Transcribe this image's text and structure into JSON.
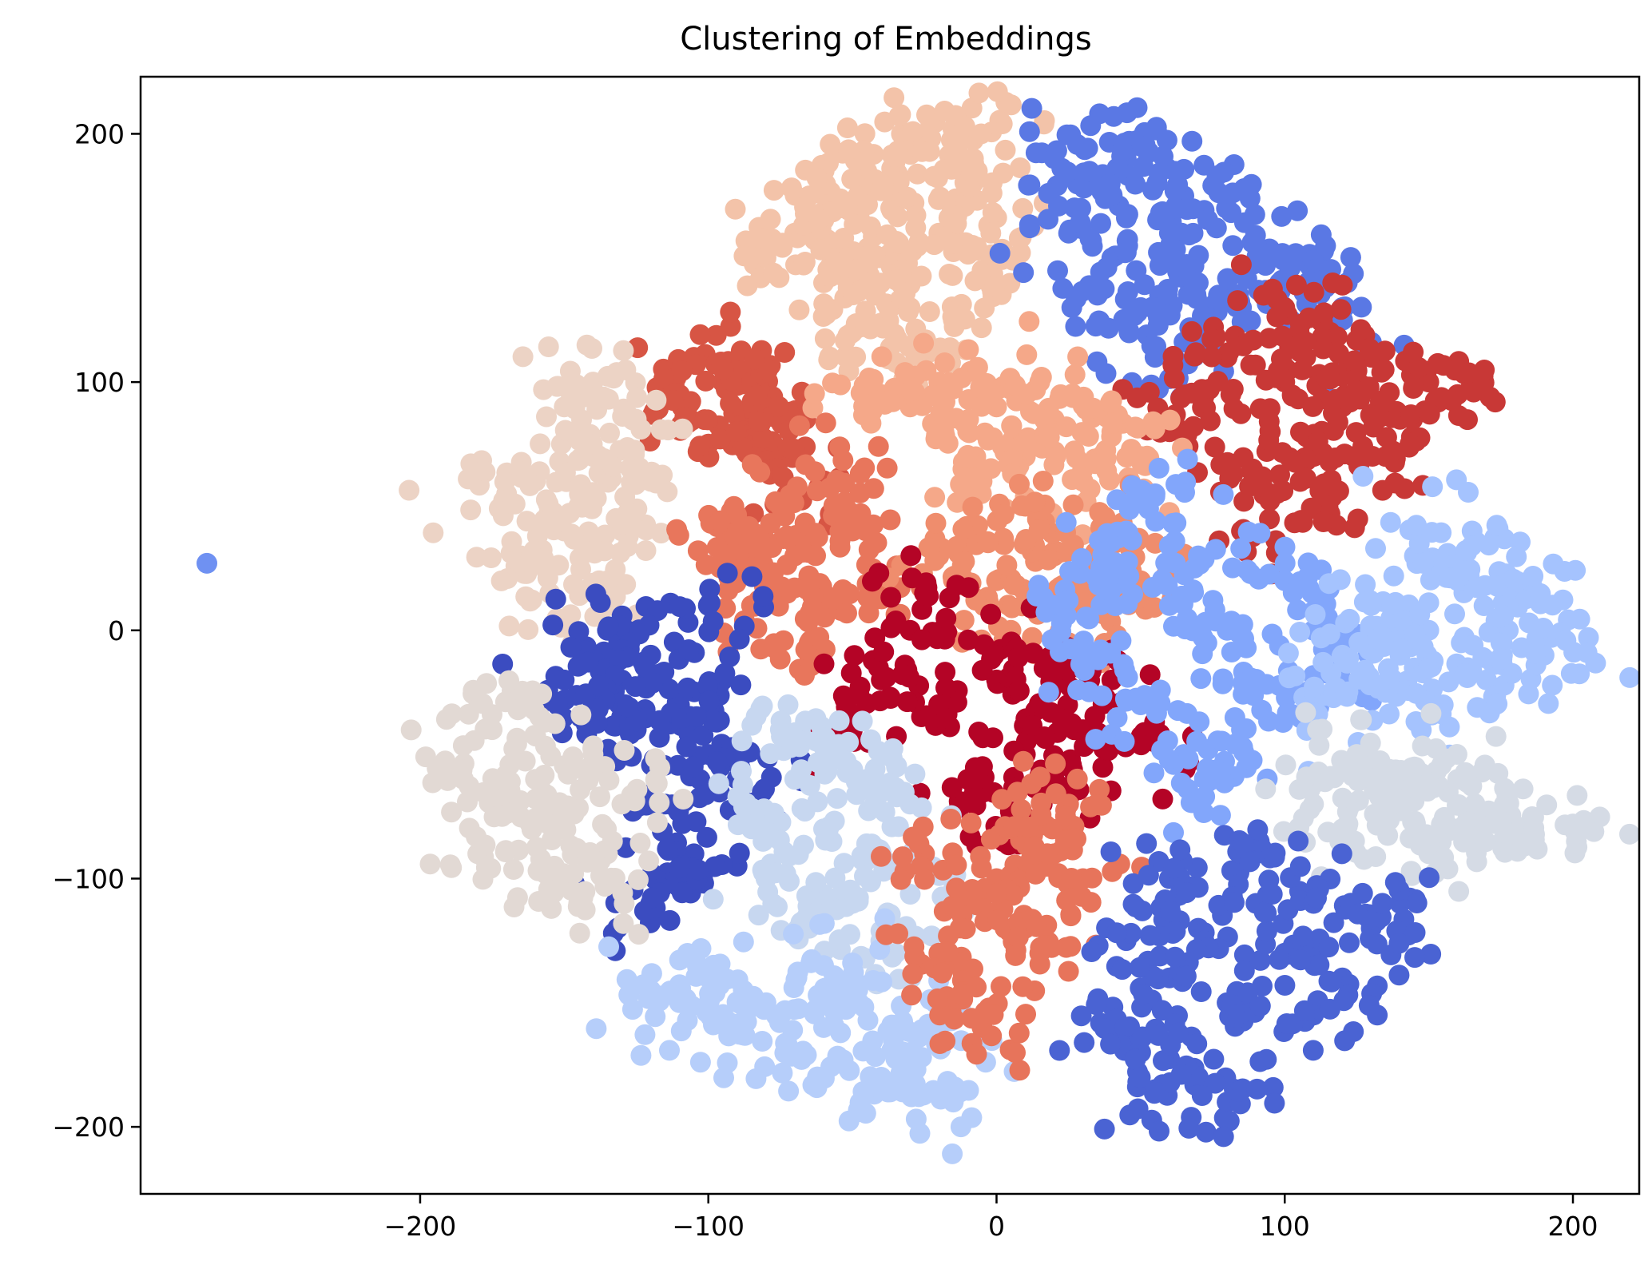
{
  "chart_data": {
    "type": "scatter",
    "title": "Clustering of Embeddings",
    "xlabel": "",
    "ylabel": "",
    "xlim": [
      -297,
      223
    ],
    "ylim": [
      -227,
      223
    ],
    "x_ticks": [
      -200,
      -100,
      0,
      100,
      200
    ],
    "y_ticks": [
      -200,
      -100,
      0,
      100,
      200
    ],
    "x_tick_labels": [
      "−200",
      "−100",
      "0",
      "100",
      "200"
    ],
    "y_tick_labels": [
      "−200",
      "−100",
      "0",
      "100",
      "200"
    ],
    "grid": false,
    "legend": "none",
    "colormap": "coolwarm",
    "series": [
      {
        "color": "#f3c3a9",
        "values": [
          [
            -40,
            150
          ],
          [
            -55,
            170
          ],
          [
            -20,
            160
          ],
          [
            -30,
            130
          ],
          [
            -60,
            140
          ],
          [
            -10,
            175
          ],
          [
            -45,
            185
          ],
          [
            -25,
            195
          ],
          [
            -70,
            160
          ],
          [
            -5,
            145
          ],
          [
            -50,
            120
          ],
          [
            -15,
            125
          ],
          [
            -35,
            175
          ],
          [
            -65,
            175
          ],
          [
            -8,
            190
          ],
          [
            -33,
            200
          ],
          [
            -80,
            150
          ],
          [
            -2,
            160
          ],
          [
            -42,
            135
          ],
          [
            -28,
            110
          ],
          [
            2,
            204
          ]
        ]
      },
      {
        "color": "#5a78e4",
        "values": [
          [
            60,
            160
          ],
          [
            40,
            150
          ],
          [
            80,
            170
          ],
          [
            50,
            130
          ],
          [
            30,
            180
          ],
          [
            70,
            140
          ],
          [
            90,
            155
          ],
          [
            45,
            190
          ],
          [
            25,
            160
          ],
          [
            100,
            140
          ],
          [
            65,
            175
          ],
          [
            85,
            130
          ],
          [
            35,
            135
          ],
          [
            55,
            110
          ],
          [
            75,
            120
          ],
          [
            110,
            145
          ],
          [
            120,
            130
          ],
          [
            20,
            190
          ],
          [
            50,
            195
          ]
        ]
      },
      {
        "color": "#c83836",
        "values": [
          [
            100,
            100
          ],
          [
            120,
            90
          ],
          [
            80,
            110
          ],
          [
            110,
            70
          ],
          [
            90,
            60
          ],
          [
            130,
            110
          ],
          [
            150,
            100
          ],
          [
            140,
            85
          ],
          [
            70,
            95
          ],
          [
            105,
            120
          ],
          [
            125,
            105
          ],
          [
            95,
            80
          ],
          [
            160,
            95
          ],
          [
            115,
            50
          ],
          [
            85,
            40
          ],
          [
            60,
            80
          ],
          [
            100,
            130
          ],
          [
            135,
            70
          ]
        ]
      },
      {
        "color": "#d75544",
        "values": [
          [
            -95,
            100
          ],
          [
            -105,
            110
          ],
          [
            -90,
            80
          ],
          [
            -80,
            90
          ],
          [
            -100,
            75
          ],
          [
            -75,
            70
          ],
          [
            -110,
            95
          ],
          [
            -70,
            55
          ],
          [
            -85,
            100
          ]
        ]
      },
      {
        "color": "#ecd3c5",
        "values": [
          [
            -150,
            40
          ],
          [
            -160,
            60
          ],
          [
            -140,
            70
          ],
          [
            -130,
            40
          ],
          [
            -165,
            30
          ],
          [
            -150,
            90
          ],
          [
            -140,
            100
          ],
          [
            -120,
            60
          ],
          [
            -135,
            20
          ],
          [
            -170,
            55
          ],
          [
            -145,
            50
          ],
          [
            -125,
            85
          ],
          [
            -155,
            15
          ]
        ]
      },
      {
        "color": "#f5a889",
        "values": [
          [
            -10,
            80
          ],
          [
            0,
            90
          ],
          [
            10,
            70
          ],
          [
            -20,
            100
          ],
          [
            20,
            85
          ],
          [
            -30,
            90
          ],
          [
            40,
            80
          ],
          [
            30,
            60
          ],
          [
            -5,
            60
          ],
          [
            15,
            100
          ],
          [
            50,
            70
          ],
          [
            -40,
            95
          ]
        ]
      },
      {
        "color": "#e8765c",
        "values": [
          [
            -70,
            30
          ],
          [
            -60,
            10
          ],
          [
            -80,
            20
          ],
          [
            -50,
            40
          ],
          [
            -90,
            40
          ],
          [
            -75,
            50
          ],
          [
            -55,
            60
          ],
          [
            -85,
            10
          ],
          [
            -65,
            -5
          ],
          [
            -40,
            20
          ],
          [
            -95,
            30
          ]
        ]
      },
      {
        "color": "#ef8d6d",
        "values": [
          [
            0,
            20
          ],
          [
            20,
            30
          ],
          [
            -10,
            40
          ],
          [
            30,
            10
          ],
          [
            10,
            50
          ],
          [
            40,
            40
          ],
          [
            25,
            -5
          ],
          [
            -20,
            30
          ],
          [
            5,
            0
          ],
          [
            50,
            20
          ]
        ]
      },
      {
        "color": "#b40426",
        "values": [
          [
            0,
            -20
          ],
          [
            -20,
            -30
          ],
          [
            20,
            -10
          ],
          [
            -30,
            0
          ],
          [
            10,
            -50
          ],
          [
            30,
            -40
          ],
          [
            -10,
            -60
          ],
          [
            40,
            -20
          ],
          [
            -40,
            -20
          ],
          [
            0,
            -80
          ],
          [
            20,
            -60
          ],
          [
            -25,
            15
          ],
          [
            55,
            -45
          ],
          [
            -50,
            -40
          ]
        ]
      },
      {
        "color": "#82a6fb",
        "values": [
          [
            40,
            20
          ],
          [
            60,
            10
          ],
          [
            30,
            -10
          ],
          [
            50,
            -30
          ],
          [
            80,
            0
          ],
          [
            70,
            30
          ],
          [
            90,
            -20
          ],
          [
            45,
            40
          ],
          [
            65,
            -50
          ],
          [
            100,
            20
          ],
          [
            20,
            10
          ],
          [
            75,
            -60
          ],
          [
            55,
            55
          ],
          [
            85,
            -40
          ],
          [
            110,
            0
          ],
          [
            120,
            -20
          ]
        ]
      },
      {
        "color": "#a5c3fe",
        "values": [
          [
            150,
            0
          ],
          [
            160,
            20
          ],
          [
            140,
            -10
          ],
          [
            170,
            -20
          ],
          [
            130,
            10
          ],
          [
            180,
            10
          ],
          [
            155,
            -30
          ],
          [
            145,
            30
          ],
          [
            165,
            40
          ],
          [
            120,
            -10
          ],
          [
            175,
            -5
          ],
          [
            135,
            -25
          ],
          [
            185,
            20
          ],
          [
            110,
            -30
          ],
          [
            190,
            -10
          ]
        ]
      },
      {
        "color": "#d5dbe5",
        "values": [
          [
            140,
            -70
          ],
          [
            160,
            -60
          ],
          [
            120,
            -80
          ],
          [
            150,
            -90
          ],
          [
            170,
            -75
          ],
          [
            130,
            -60
          ],
          [
            110,
            -70
          ],
          [
            180,
            -80
          ],
          [
            145,
            -55
          ],
          [
            165,
            -85
          ],
          [
            125,
            -50
          ],
          [
            200,
            -78
          ]
        ]
      },
      {
        "color": "#3b4cc0",
        "values": [
          [
            -110,
            -30
          ],
          [
            -120,
            -10
          ],
          [
            -100,
            -50
          ],
          [
            -130,
            -20
          ],
          [
            -115,
            -70
          ],
          [
            -105,
            -90
          ],
          [
            -125,
            -40
          ],
          [
            -95,
            -20
          ],
          [
            -135,
            0
          ],
          [
            -110,
            -100
          ],
          [
            -140,
            -30
          ],
          [
            -100,
            10
          ],
          [
            -150,
            -20
          ],
          [
            -120,
            -110
          ],
          [
            -90,
            -60
          ]
        ]
      },
      {
        "color": "#e2d9d4",
        "values": [
          [
            -160,
            -60
          ],
          [
            -170,
            -70
          ],
          [
            -150,
            -80
          ],
          [
            -140,
            -50
          ],
          [
            -175,
            -40
          ],
          [
            -155,
            -100
          ],
          [
            -135,
            -90
          ],
          [
            -165,
            -30
          ],
          [
            -145,
            -110
          ],
          [
            -185,
            -60
          ],
          [
            -130,
            -70
          ],
          [
            -180,
            -90
          ]
        ]
      },
      {
        "color": "#c7d7f0",
        "values": [
          [
            -60,
            -80
          ],
          [
            -40,
            -90
          ],
          [
            -70,
            -60
          ],
          [
            -50,
            -110
          ],
          [
            -80,
            -100
          ],
          [
            -30,
            -70
          ],
          [
            -55,
            -50
          ],
          [
            -65,
            -120
          ],
          [
            -35,
            -130
          ],
          [
            -85,
            -80
          ],
          [
            -45,
            -60
          ],
          [
            -75,
            -40
          ],
          [
            -25,
            -100
          ]
        ]
      },
      {
        "color": "#b6cefa",
        "values": [
          [
            -80,
            -150
          ],
          [
            -60,
            -160
          ],
          [
            -100,
            -140
          ],
          [
            -70,
            -170
          ],
          [
            -50,
            -140
          ],
          [
            -90,
            -160
          ],
          [
            -40,
            -180
          ],
          [
            -110,
            -150
          ],
          [
            -60,
            -135
          ],
          [
            -30,
            -170
          ],
          [
            -20,
            -160
          ],
          [
            -120,
            -145
          ],
          [
            -35,
            -185
          ],
          [
            -15,
            -190
          ]
        ]
      },
      {
        "color": "#e7745b",
        "values": [
          [
            0,
            -100
          ],
          [
            10,
            -120
          ],
          [
            -10,
            -110
          ],
          [
            20,
            -90
          ],
          [
            -20,
            -130
          ],
          [
            5,
            -80
          ],
          [
            30,
            -100
          ],
          [
            -15,
            -150
          ],
          [
            15,
            -130
          ],
          [
            -5,
            -160
          ],
          [
            25,
            -70
          ],
          [
            -25,
            -90
          ]
        ]
      },
      {
        "color": "#4a63d3",
        "values": [
          [
            70,
            -120
          ],
          [
            90,
            -110
          ],
          [
            60,
            -140
          ],
          [
            80,
            -150
          ],
          [
            100,
            -130
          ],
          [
            50,
            -170
          ],
          [
            70,
            -180
          ],
          [
            40,
            -160
          ],
          [
            110,
            -110
          ],
          [
            120,
            -140
          ],
          [
            60,
            -100
          ],
          [
            90,
            -90
          ],
          [
            130,
            -120
          ],
          [
            80,
            -190
          ],
          [
            55,
            -185
          ],
          [
            140,
            -110
          ],
          [
            45,
            -125
          ],
          [
            110,
            -155
          ]
        ]
      }
    ]
  }
}
